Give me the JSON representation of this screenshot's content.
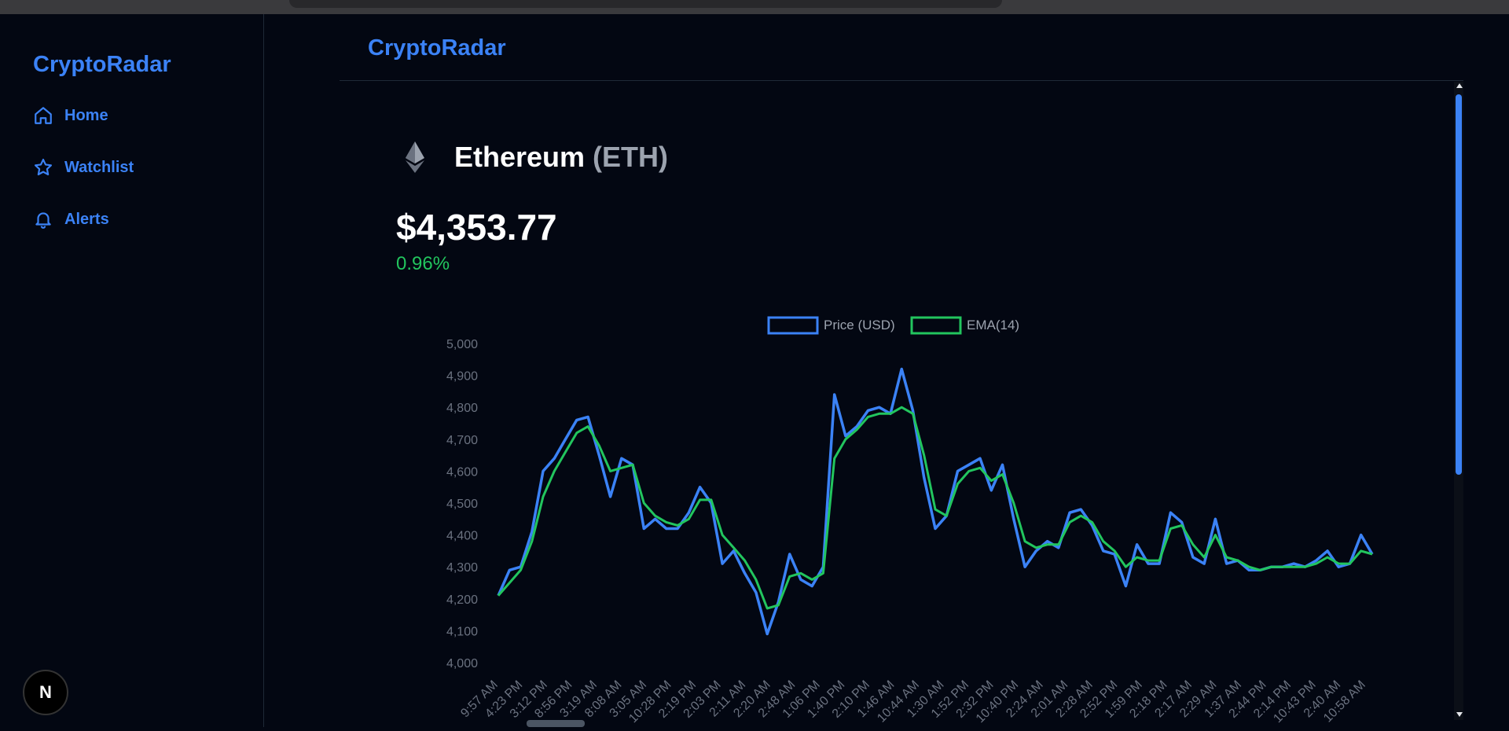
{
  "sidebar": {
    "brand": "CryptoRadar",
    "items": [
      {
        "label": "Home",
        "icon": "home-icon"
      },
      {
        "label": "Watchlist",
        "icon": "star-icon"
      },
      {
        "label": "Alerts",
        "icon": "bell-icon"
      }
    ],
    "badge": "N"
  },
  "header": {
    "title": "CryptoRadar"
  },
  "coin": {
    "name": "Ethereum",
    "symbol": "(ETH)",
    "price": "$4,353.77",
    "change": "0.96%"
  },
  "colors": {
    "accent": "#3b82f6",
    "positive": "#22c55e",
    "background": "#030712"
  },
  "chart_data": {
    "type": "line",
    "ylim": [
      4000,
      5000
    ],
    "yticks": [
      "5,000",
      "4,900",
      "4,800",
      "4,700",
      "4,600",
      "4,500",
      "4,400",
      "4,300",
      "4,200",
      "4,100",
      "4,000"
    ],
    "xticks": [
      "9:57 AM",
      "4:23 PM",
      "3:12 PM",
      "8:56 PM",
      "3:19 AM",
      "8:08 AM",
      "3:05 AM",
      "10:28 PM",
      "2:19 PM",
      "2:03 PM",
      "2:11 AM",
      "2:20 AM",
      "2:48 AM",
      "1:06 PM",
      "1:40 PM",
      "2:10 PM",
      "1:46 AM",
      "10:44 AM",
      "1:30 AM",
      "1:52 PM",
      "2:32 PM",
      "10:40 PM",
      "2:24 AM",
      "2:01 AM",
      "2:28 AM",
      "2:52 PM",
      "1:59 PM",
      "2:18 PM",
      "2:17 AM",
      "2:29 AM",
      "1:37 AM",
      "2:44 PM",
      "2:14 PM",
      "10:43 PM",
      "2:40 AM",
      "10:58 AM"
    ],
    "legend": [
      "Price (USD)",
      "EMA(14)"
    ],
    "series": [
      {
        "name": "Price (USD)",
        "color": "#3b82f6",
        "values": [
          4210,
          4290,
          4300,
          4410,
          4600,
          4640,
          4700,
          4760,
          4770,
          4650,
          4520,
          4640,
          4620,
          4420,
          4450,
          4420,
          4420,
          4470,
          4550,
          4500,
          4310,
          4350,
          4280,
          4220,
          4090,
          4190,
          4340,
          4260,
          4240,
          4300,
          4840,
          4710,
          4740,
          4790,
          4800,
          4780,
          4920,
          4790,
          4580,
          4420,
          4460,
          4600,
          4620,
          4640,
          4540,
          4620,
          4450,
          4300,
          4350,
          4380,
          4360,
          4470,
          4480,
          4430,
          4350,
          4340,
          4240,
          4370,
          4310,
          4310,
          4470,
          4440,
          4330,
          4310,
          4450,
          4310,
          4320,
          4290,
          4290,
          4300,
          4300,
          4310,
          4300,
          4320,
          4350,
          4300,
          4310,
          4400,
          4340
        ]
      },
      {
        "name": "EMA(14)",
        "color": "#22c55e",
        "values": [
          4210,
          4250,
          4290,
          4380,
          4520,
          4600,
          4660,
          4720,
          4740,
          4680,
          4600,
          4610,
          4620,
          4500,
          4460,
          4440,
          4430,
          4450,
          4510,
          4510,
          4400,
          4360,
          4320,
          4260,
          4170,
          4180,
          4270,
          4280,
          4260,
          4280,
          4640,
          4700,
          4730,
          4770,
          4780,
          4780,
          4800,
          4780,
          4650,
          4480,
          4460,
          4560,
          4600,
          4610,
          4570,
          4590,
          4500,
          4380,
          4360,
          4370,
          4370,
          4440,
          4460,
          4440,
          4380,
          4350,
          4300,
          4330,
          4320,
          4320,
          4420,
          4430,
          4370,
          4330,
          4400,
          4330,
          4320,
          4300,
          4290,
          4300,
          4300,
          4300,
          4300,
          4310,
          4330,
          4310,
          4310,
          4350,
          4340
        ]
      }
    ]
  }
}
